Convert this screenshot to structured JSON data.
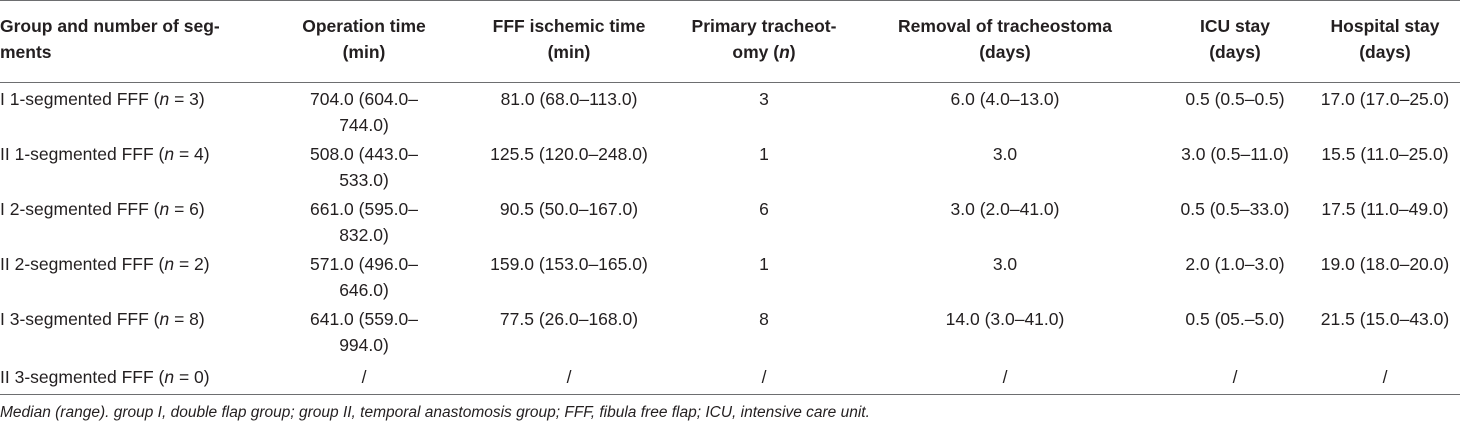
{
  "table": {
    "headers": [
      "Group and number of seg-ments",
      "Operation time (min)",
      "FFF ischemic time (min)",
      "Primary tracheot-omy (n)",
      "Removal of tracheostoma (days)",
      "ICU stay (days)",
      "Hospital stay (days)"
    ],
    "header_parts": {
      "col1_l1": "Group and number of seg-",
      "col1_l2": "ments",
      "col2_l1": "Operation time",
      "col2_l2": "(min)",
      "col3_l1": "FFF ischemic time",
      "col3_l2": "(min)",
      "col4_l1": "Primary tracheot-",
      "col4_l2a": "omy (",
      "col4_l2n": "n",
      "col4_l2b": ")",
      "col5_l1": "Removal of tracheostoma",
      "col5_l2": "(days)",
      "col6_l1": "ICU stay",
      "col6_l2": "(days)",
      "col7_l1": "Hospital stay",
      "col7_l2": "(days)"
    },
    "rows": [
      {
        "group": "I 1-segmented FFF (n = 3)",
        "group_prefix": "I 1-segmented FFF (",
        "group_n": "n",
        "group_suffix": " = 3)",
        "operation_l1": "704.0 (604.0–",
        "operation_l2": "744.0)",
        "ischemic": "81.0 (68.0–113.0)",
        "tracheotomy": "3",
        "removal": "6.0 (4.0–13.0)",
        "icu": "0.5 (0.5–0.5)",
        "hospital": "17.0 (17.0–25.0)"
      },
      {
        "group": "II 1-segmented FFF (n = 4)",
        "group_prefix": "II 1-segmented FFF (",
        "group_n": "n",
        "group_suffix": " = 4)",
        "operation_l1": "508.0 (443.0–",
        "operation_l2": "533.0)",
        "ischemic": "125.5 (120.0–248.0)",
        "tracheotomy": "1",
        "removal": "3.0",
        "icu": "3.0 (0.5–11.0)",
        "hospital": "15.5 (11.0–25.0)"
      },
      {
        "group": "I 2-segmented FFF (n = 6)",
        "group_prefix": "I 2-segmented FFF (",
        "group_n": "n",
        "group_suffix": " = 6)",
        "operation_l1": "661.0 (595.0–",
        "operation_l2": "832.0)",
        "ischemic": "90.5 (50.0–167.0)",
        "tracheotomy": "6",
        "removal": "3.0 (2.0–41.0)",
        "icu": "0.5 (0.5–33.0)",
        "hospital": "17.5 (11.0–49.0)"
      },
      {
        "group": "II 2-segmented FFF (n = 2)",
        "group_prefix": "II 2-segmented FFF (",
        "group_n": "n",
        "group_suffix": " = 2)",
        "operation_l1": "571.0 (496.0–",
        "operation_l2": "646.0)",
        "ischemic": "159.0 (153.0–165.0)",
        "tracheotomy": "1",
        "removal": "3.0",
        "icu": "2.0 (1.0–3.0)",
        "hospital": "19.0 (18.0–20.0)"
      },
      {
        "group": "I 3-segmented FFF (n = 8)",
        "group_prefix": "I 3-segmented FFF (",
        "group_n": "n",
        "group_suffix": " = 8)",
        "operation_l1": "641.0 (559.0–",
        "operation_l2": "994.0)",
        "ischemic": "77.5 (26.0–168.0)",
        "tracheotomy": "8",
        "removal": "14.0 (3.0–41.0)",
        "icu": "0.5 (05.–5.0)",
        "hospital": "21.5 (15.0–43.0)"
      },
      {
        "group": "II 3-segmented FFF (n = 0)",
        "group_prefix": "II 3-segmented FFF (",
        "group_n": "n",
        "group_suffix": " = 0)",
        "operation_l1": "/",
        "operation_l2": "",
        "ischemic": "/",
        "tracheotomy": "/",
        "removal": "/",
        "icu": "/",
        "hospital": "/"
      }
    ]
  },
  "footnote": "Median (range). group I, double flap group; group II, temporal anastomosis group; FFF, fibula free flap; ICU, intensive care unit."
}
